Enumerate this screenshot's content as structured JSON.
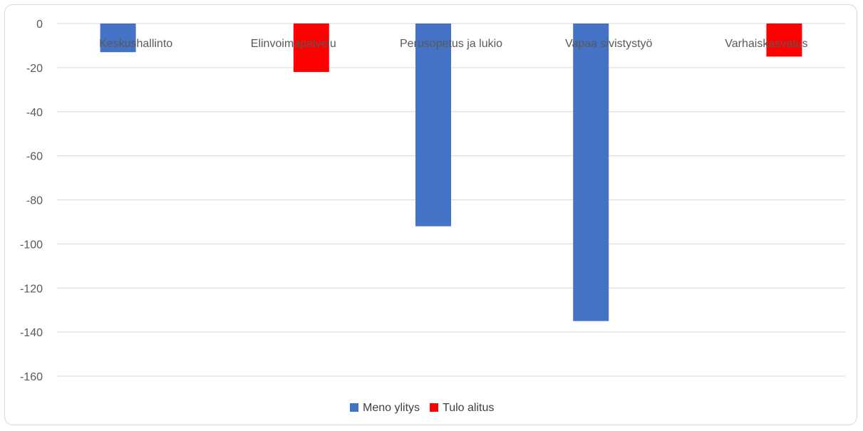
{
  "chart_data": {
    "type": "bar",
    "title": "",
    "xlabel": "",
    "ylabel": "",
    "categories": [
      "Keskushallinto",
      "Elinvoimapalvelu",
      "Perusopetus ja lukio",
      "Vapaa sivistystyö",
      "Varhaiskasvatus"
    ],
    "series": [
      {
        "name": "Meno ylitys",
        "color": "#4472c4",
        "values": [
          -13,
          null,
          -92,
          -135,
          null
        ]
      },
      {
        "name": "Tulo alitus",
        "color": "#ff0000",
        "values": [
          null,
          -22,
          null,
          null,
          -15
        ]
      }
    ],
    "ylim": [
      -160,
      0
    ],
    "yticks": [
      "0",
      "-20",
      "-40",
      "-60",
      "-80",
      "-100",
      "-120",
      "-140",
      "-160"
    ],
    "grid": true,
    "legend_position": "bottom"
  }
}
